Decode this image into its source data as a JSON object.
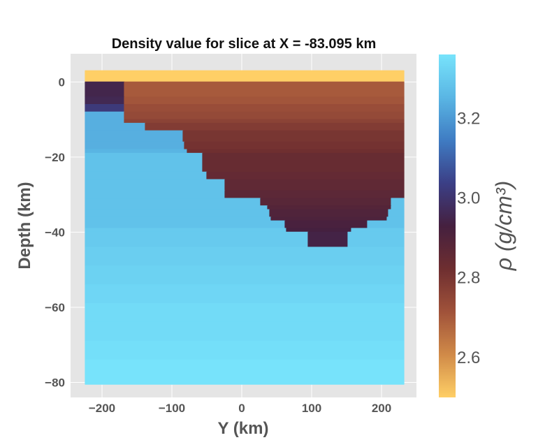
{
  "chart_data": {
    "type": "heatmap",
    "title": "Density value for slice at X = -83.095 km",
    "xlabel": "Y (km)",
    "ylabel": "Depth (km)",
    "xlim": [
      -245,
      250
    ],
    "ylim": [
      -84,
      7.5
    ],
    "xticks": [
      -200,
      -100,
      0,
      100,
      200
    ],
    "yticks": [
      0,
      -20,
      -40,
      -60,
      -80
    ],
    "grid": true,
    "colorbar": {
      "label": "ρ (g/cm³)",
      "range": [
        2.5,
        3.36
      ],
      "ticks": [
        2.6,
        2.8,
        3.0,
        3.2
      ],
      "colors": [
        "#ffcf66",
        "#d08a48",
        "#a0523a",
        "#6e2e30",
        "#45203f",
        "#3b3f86",
        "#3f7cc3",
        "#5ab6e4",
        "#77e3fb"
      ]
    },
    "layers": [
      {
        "depth": [
          3,
          0
        ],
        "y": [
          -224,
          232
        ],
        "rho": 2.5
      },
      {
        "depth": [
          0,
          -2
        ],
        "y": [
          -224,
          -168
        ],
        "rho": 2.95
      },
      {
        "depth": [
          0,
          -2
        ],
        "y": [
          -168,
          232
        ],
        "rho": 2.7
      },
      {
        "depth": [
          -2,
          -4
        ],
        "y": [
          -224,
          -168
        ],
        "rho": 2.95
      },
      {
        "depth": [
          -2,
          -4
        ],
        "y": [
          -168,
          232
        ],
        "rho": 2.7
      },
      {
        "depth": [
          -4,
          -6
        ],
        "y": [
          -224,
          -168
        ],
        "rho": 2.96
      },
      {
        "depth": [
          -4,
          -6
        ],
        "y": [
          -168,
          232
        ],
        "rho": 2.71
      },
      {
        "depth": [
          -6,
          -8
        ],
        "y": [
          -224,
          -168
        ],
        "rho": 3.02
      },
      {
        "depth": [
          -6,
          -8
        ],
        "y": [
          -168,
          232
        ],
        "rho": 2.73
      },
      {
        "depth": [
          -8,
          -10
        ],
        "y": [
          -224,
          -168
        ],
        "rho": 3.24
      },
      {
        "depth": [
          -8,
          -10
        ],
        "y": [
          -168,
          232
        ],
        "rho": 2.74
      },
      {
        "depth": [
          -10,
          -11
        ],
        "y": [
          -224,
          -168
        ],
        "rho": 3.24
      },
      {
        "depth": [
          -10,
          -11
        ],
        "y": [
          -168,
          232
        ],
        "rho": 2.76
      },
      {
        "depth": [
          -11,
          -13
        ],
        "y": [
          -224,
          -138
        ],
        "rho": 3.24
      },
      {
        "depth": [
          -11,
          -13
        ],
        "y": [
          -138,
          232
        ],
        "rho": 2.78
      },
      {
        "depth": [
          -13,
          -16
        ],
        "y": [
          -224,
          -84
        ],
        "rho": 3.24
      },
      {
        "depth": [
          -13,
          -16
        ],
        "y": [
          -84,
          232
        ],
        "rho": 2.8
      },
      {
        "depth": [
          -16,
          -18
        ],
        "y": [
          -224,
          -82
        ],
        "rho": 3.24
      },
      {
        "depth": [
          -16,
          -18
        ],
        "y": [
          -82,
          232
        ],
        "rho": 2.81
      },
      {
        "depth": [
          -18,
          -19
        ],
        "y": [
          -224,
          -78
        ],
        "rho": 3.25
      },
      {
        "depth": [
          -18,
          -19
        ],
        "y": [
          -78,
          232
        ],
        "rho": 2.82
      },
      {
        "depth": [
          -19,
          -24
        ],
        "y": [
          -224,
          -56
        ],
        "rho": 3.28
      },
      {
        "depth": [
          -19,
          -24
        ],
        "y": [
          -56,
          232
        ],
        "rho": 2.84
      },
      {
        "depth": [
          -24,
          -26
        ],
        "y": [
          -224,
          -50
        ],
        "rho": 3.28
      },
      {
        "depth": [
          -24,
          -26
        ],
        "y": [
          -50,
          232
        ],
        "rho": 2.85
      },
      {
        "depth": [
          -26,
          -29
        ],
        "y": [
          -224,
          -24
        ],
        "rho": 3.28
      },
      {
        "depth": [
          -26,
          -29
        ],
        "y": [
          -24,
          232
        ],
        "rho": 2.86
      },
      {
        "depth": [
          -29,
          -31
        ],
        "y": [
          -224,
          -24
        ],
        "rho": 3.28
      },
      {
        "depth": [
          -29,
          -31
        ],
        "y": [
          -24,
          232
        ],
        "rho": 2.87
      },
      {
        "depth": [
          -31,
          -33
        ],
        "y": [
          -224,
          27
        ],
        "rho": 3.28
      },
      {
        "depth": [
          -31,
          -33
        ],
        "y": [
          27,
          214
        ],
        "rho": 2.88
      },
      {
        "depth": [
          -31,
          -33
        ],
        "y": [
          214,
          232
        ],
        "rho": 3.28
      },
      {
        "depth": [
          -33,
          -34
        ],
        "y": [
          -224,
          37
        ],
        "rho": 3.28
      },
      {
        "depth": [
          -33,
          -34
        ],
        "y": [
          37,
          214
        ],
        "rho": 2.89
      },
      {
        "depth": [
          -33,
          -34
        ],
        "y": [
          214,
          232
        ],
        "rho": 3.28
      },
      {
        "depth": [
          -34,
          -36
        ],
        "y": [
          -224,
          40
        ],
        "rho": 3.28
      },
      {
        "depth": [
          -34,
          -36
        ],
        "y": [
          40,
          210
        ],
        "rho": 2.9
      },
      {
        "depth": [
          -34,
          -36
        ],
        "y": [
          210,
          232
        ],
        "rho": 3.28
      },
      {
        "depth": [
          -36,
          -37
        ],
        "y": [
          -224,
          42
        ],
        "rho": 3.28
      },
      {
        "depth": [
          -36,
          -37
        ],
        "y": [
          42,
          208
        ],
        "rho": 2.91
      },
      {
        "depth": [
          -36,
          -37
        ],
        "y": [
          208,
          232
        ],
        "rho": 3.28
      },
      {
        "depth": [
          -37,
          -39
        ],
        "y": [
          -224,
          62
        ],
        "rho": 3.28
      },
      {
        "depth": [
          -37,
          -39
        ],
        "y": [
          62,
          180
        ],
        "rho": 2.92
      },
      {
        "depth": [
          -37,
          -39
        ],
        "y": [
          180,
          232
        ],
        "rho": 3.28
      },
      {
        "depth": [
          -39,
          -40
        ],
        "y": [
          -224,
          64
        ],
        "rho": 3.3
      },
      {
        "depth": [
          -39,
          -40
        ],
        "y": [
          64,
          157
        ],
        "rho": 2.93
      },
      {
        "depth": [
          -39,
          -40
        ],
        "y": [
          157,
          232
        ],
        "rho": 3.3
      },
      {
        "depth": [
          -40,
          -44
        ],
        "y": [
          -224,
          95
        ],
        "rho": 3.3
      },
      {
        "depth": [
          -40,
          -44
        ],
        "y": [
          95,
          152
        ],
        "rho": 2.94
      },
      {
        "depth": [
          -40,
          -44
        ],
        "y": [
          152,
          232
        ],
        "rho": 3.3
      },
      {
        "depth": [
          -44,
          -49
        ],
        "y": [
          -224,
          232
        ],
        "rho": 3.31
      },
      {
        "depth": [
          -49,
          -54
        ],
        "y": [
          -224,
          232
        ],
        "rho": 3.32
      },
      {
        "depth": [
          -54,
          -59
        ],
        "y": [
          -224,
          232
        ],
        "rho": 3.33
      },
      {
        "depth": [
          -59,
          -64
        ],
        "y": [
          -224,
          232
        ],
        "rho": 3.34
      },
      {
        "depth": [
          -64,
          -69
        ],
        "y": [
          -224,
          232
        ],
        "rho": 3.34
      },
      {
        "depth": [
          -69,
          -74
        ],
        "y": [
          -224,
          232
        ],
        "rho": 3.35
      },
      {
        "depth": [
          -74,
          -80.5
        ],
        "y": [
          -224,
          232
        ],
        "rho": 3.36
      }
    ]
  }
}
